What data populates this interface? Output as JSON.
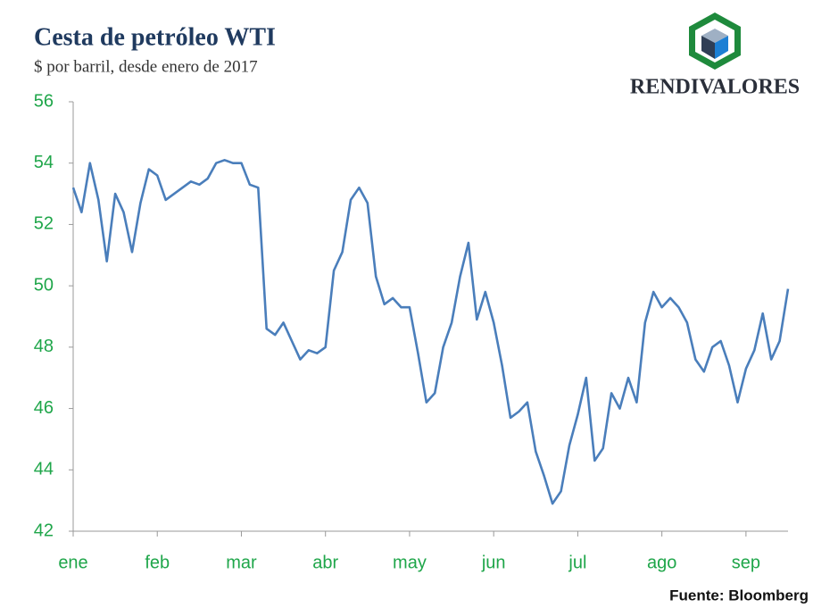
{
  "chart_data": {
    "type": "line",
    "title": "Cesta de petróleo WTI",
    "subtitle": "$ por barril, desde enero de 2017",
    "source": "Fuente: Bloomberg",
    "logo_text": "RENDIVALORES",
    "categories": [
      "ene",
      null,
      null,
      null,
      null,
      null,
      null,
      null,
      null,
      null,
      "feb",
      null,
      null,
      null,
      null,
      null,
      null,
      null,
      null,
      null,
      "mar",
      null,
      null,
      null,
      null,
      null,
      null,
      null,
      null,
      null,
      "abr",
      null,
      null,
      null,
      null,
      null,
      null,
      null,
      null,
      null,
      "may",
      null,
      null,
      null,
      null,
      null,
      null,
      null,
      null,
      null,
      "jun",
      null,
      null,
      null,
      null,
      null,
      null,
      null,
      null,
      null,
      "jul",
      null,
      null,
      null,
      null,
      null,
      null,
      null,
      null,
      null,
      "ago",
      null,
      null,
      null,
      null,
      null,
      null,
      null,
      null,
      null,
      "sep",
      null,
      null,
      null,
      null,
      null
    ],
    "series": [
      {
        "name": "WTI",
        "color": "#4a7ebb",
        "values": [
          53.2,
          52.4,
          54.0,
          52.8,
          50.8,
          53.0,
          52.4,
          51.1,
          52.7,
          53.8,
          53.6,
          52.8,
          53.0,
          53.2,
          53.4,
          53.3,
          53.5,
          54.0,
          54.1,
          54.0,
          54.0,
          53.3,
          53.2,
          48.6,
          48.4,
          48.8,
          48.2,
          47.6,
          47.9,
          47.8,
          48.0,
          50.5,
          51.1,
          52.8,
          53.2,
          52.7,
          50.3,
          49.4,
          49.6,
          49.3,
          49.3,
          47.8,
          46.2,
          46.5,
          48.0,
          48.8,
          50.3,
          51.4,
          48.9,
          49.8,
          48.8,
          47.4,
          45.7,
          45.9,
          46.2,
          44.6,
          43.8,
          42.9,
          43.3,
          44.8,
          45.8,
          47.0,
          44.3,
          44.7,
          46.5,
          46.0,
          47.0,
          46.2,
          48.8,
          49.8,
          49.3,
          49.6,
          49.3,
          48.8,
          47.6,
          47.2,
          48.0,
          48.2,
          47.4,
          46.2,
          47.3,
          47.9,
          49.1,
          47.6,
          48.2,
          49.9
        ]
      }
    ],
    "ylim": [
      42,
      56
    ],
    "yticks": [
      42,
      44,
      46,
      48,
      50,
      52,
      54,
      56
    ],
    "grid": false
  }
}
